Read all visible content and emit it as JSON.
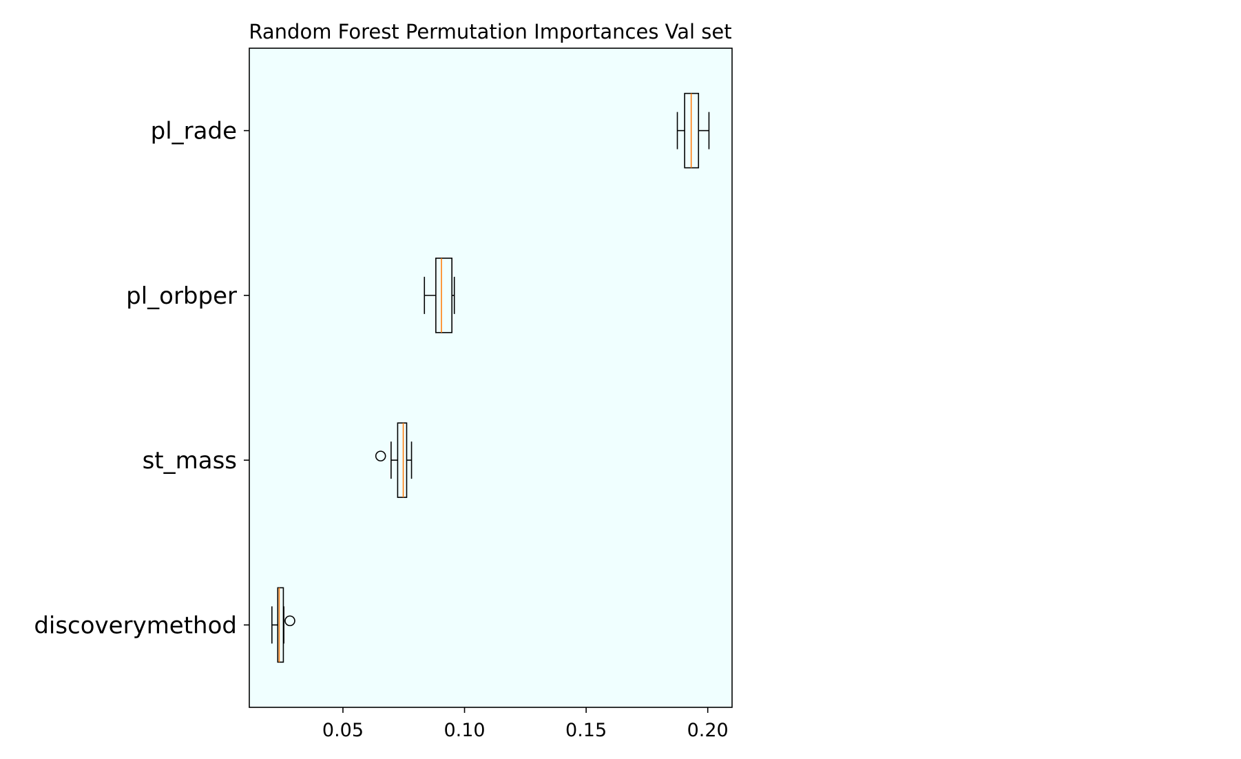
{
  "chart_data": {
    "type": "boxplot",
    "title": "Random Forest Permutation Importances Val set",
    "xlabel": "",
    "ylabel": "",
    "xlim": [
      0.0115,
      0.21
    ],
    "xticks": [
      0.05,
      0.1,
      0.15,
      0.2
    ],
    "xtick_labels": [
      "0.05",
      "0.10",
      "0.15",
      "0.20"
    ],
    "orientation": "horizontal",
    "grid": false,
    "colors": {
      "axes_background": "#f0ffff",
      "box_edge": "#000000",
      "median": "#ff7f0e"
    },
    "categories": [
      "pl_rade",
      "pl_orbper",
      "st_mass",
      "discoverymethod"
    ],
    "boxes": [
      {
        "label": "pl_rade",
        "whisker_low": 0.1875,
        "q1": 0.1905,
        "median": 0.1932,
        "q3": 0.1962,
        "whisker_high": 0.2005,
        "outliers": []
      },
      {
        "label": "pl_orbper",
        "whisker_low": 0.0835,
        "q1": 0.0882,
        "median": 0.0905,
        "q3": 0.0948,
        "whisker_high": 0.0958,
        "outliers": []
      },
      {
        "label": "st_mass",
        "whisker_low": 0.0698,
        "q1": 0.0725,
        "median": 0.0748,
        "q3": 0.0762,
        "whisker_high": 0.0782,
        "outliers": [
          0.0655
        ]
      },
      {
        "label": "discoverymethod",
        "whisker_low": 0.0208,
        "q1": 0.0232,
        "median": 0.0238,
        "q3": 0.0255,
        "whisker_high": 0.0257,
        "outliers": [
          0.0282
        ]
      }
    ]
  }
}
